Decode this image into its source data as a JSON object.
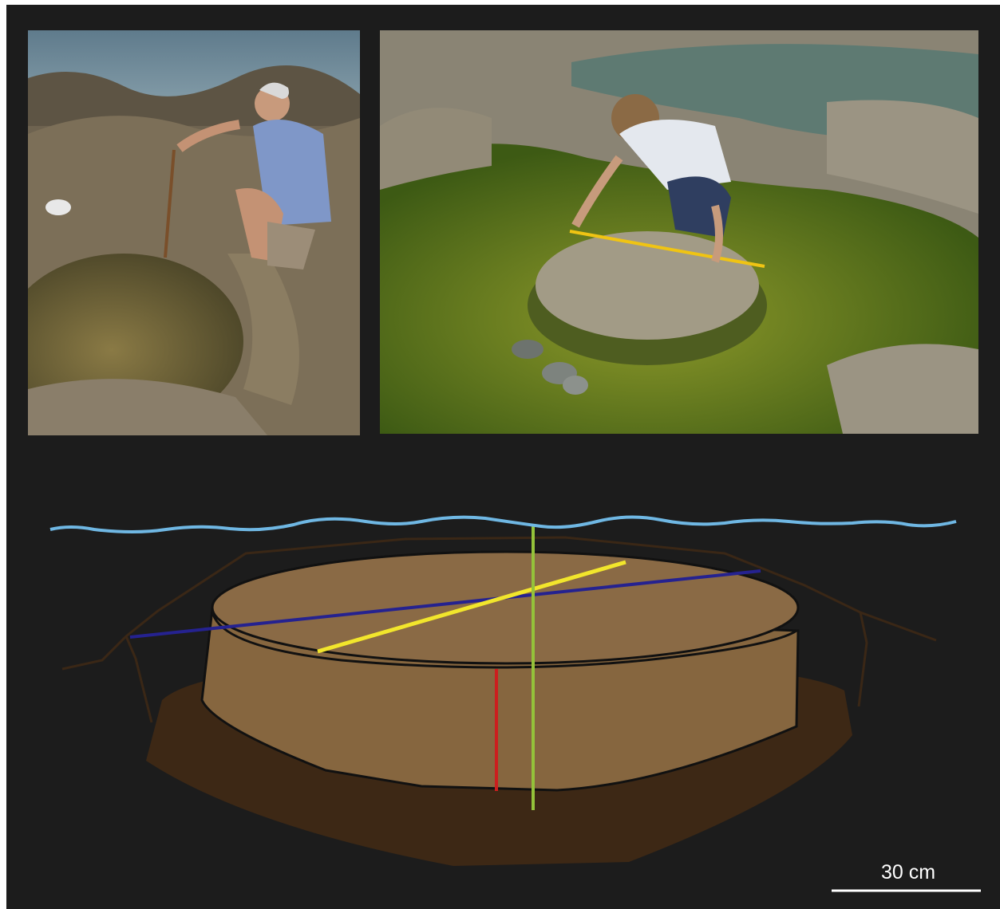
{
  "scale_bar": {
    "label": "30 cm"
  },
  "colors": {
    "background": "#1c1c1c",
    "water_line": "#6fb7e3",
    "boulder_top": "#8a6a45",
    "boulder_side": "#86663f",
    "moat": "#3d2815",
    "rock_outline": "#3a2716",
    "diameter_line_a": "#252290",
    "diameter_line_b": "#f2e62c",
    "height_line": "#cc1e1e",
    "depth_line": "#94c23a"
  },
  "photos": [
    {
      "name": "left-photo",
      "icon": "photo-man-measuring-pool-icon"
    },
    {
      "name": "right-photo",
      "icon": "photo-woman-measuring-boulder-icon"
    }
  ]
}
